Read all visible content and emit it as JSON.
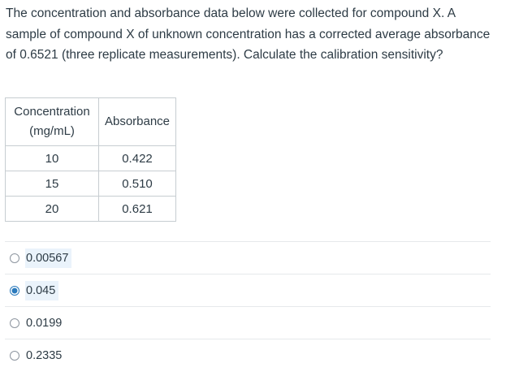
{
  "question": {
    "text": "The concentration and absorbance data below were collected for compound X. A sample of compound X of unknown concentration has a corrected average absorbance of 0.6521 (three replicate measurements). Calculate the calibration sensitivity?"
  },
  "table": {
    "headers": [
      "Concentration (mg/mL)",
      "Absorbance"
    ],
    "rows": [
      [
        "10",
        "0.422"
      ],
      [
        "15",
        "0.510"
      ],
      [
        "20",
        "0.621"
      ]
    ]
  },
  "answers": [
    {
      "label": "0.00567",
      "selected": false
    },
    {
      "label": "0.045",
      "selected": true
    },
    {
      "label": "0.0199",
      "selected": false
    },
    {
      "label": "0.2335",
      "selected": false
    }
  ],
  "colors": {
    "text": "#2d3b45",
    "border": "#c7cdd1",
    "radio_selected": "#2b7abc",
    "highlight": "#eaf3fb"
  }
}
